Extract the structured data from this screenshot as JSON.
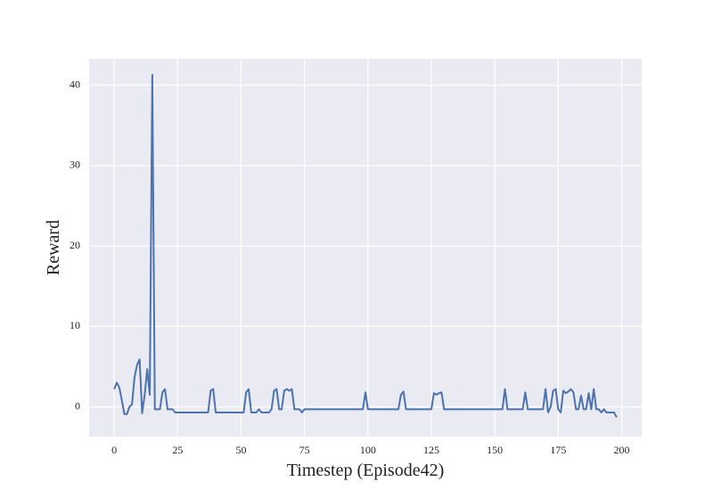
{
  "chart_data": {
    "type": "line",
    "x_label": "Timestep (Episode42)",
    "y_label": "Reward",
    "x": [
      0,
      1,
      2,
      3,
      4,
      5,
      6,
      7,
      8,
      9,
      10,
      11,
      12,
      13,
      14,
      15,
      16,
      17,
      18,
      19,
      20,
      21,
      22,
      23,
      24,
      25,
      26,
      27,
      28,
      29,
      30,
      31,
      32,
      33,
      34,
      35,
      36,
      37,
      38,
      39,
      40,
      41,
      42,
      43,
      44,
      45,
      46,
      47,
      48,
      49,
      50,
      51,
      52,
      53,
      54,
      55,
      56,
      57,
      58,
      59,
      60,
      61,
      62,
      63,
      64,
      65,
      66,
      67,
      68,
      69,
      70,
      71,
      72,
      73,
      74,
      75,
      76,
      77,
      78,
      79,
      80,
      81,
      82,
      83,
      84,
      85,
      86,
      87,
      88,
      89,
      90,
      91,
      92,
      93,
      94,
      95,
      96,
      97,
      98,
      99,
      100,
      101,
      102,
      103,
      104,
      105,
      106,
      107,
      108,
      109,
      110,
      111,
      112,
      113,
      114,
      115,
      116,
      117,
      118,
      119,
      120,
      121,
      122,
      123,
      124,
      125,
      126,
      127,
      128,
      129,
      130,
      131,
      132,
      133,
      134,
      135,
      136,
      137,
      138,
      139,
      140,
      141,
      142,
      143,
      144,
      145,
      146,
      147,
      148,
      149,
      150,
      151,
      152,
      153,
      154,
      155,
      156,
      157,
      158,
      159,
      160,
      161,
      162,
      163,
      164,
      165,
      166,
      167,
      168,
      169,
      170,
      171,
      172,
      173,
      174,
      175,
      176,
      177,
      178,
      179,
      180,
      181,
      182,
      183,
      184,
      185,
      186,
      187,
      188,
      189,
      190,
      191,
      192,
      193,
      194,
      195,
      196,
      197,
      198
    ],
    "series": [
      {
        "color": "#4c72b0",
        "values": [
          2.2,
          3.0,
          2.4,
          0.8,
          -0.9,
          -0.9,
          0,
          0.3,
          3.7,
          5.2,
          5.9,
          -0.8,
          1.5,
          4.7,
          1.5,
          41.3,
          -0.3,
          -0.3,
          -0.3,
          1.8,
          2.2,
          -0.3,
          -0.3,
          -0.3,
          -0.7,
          -0.7,
          -0.7,
          -0.7,
          -0.7,
          -0.7,
          -0.7,
          -0.7,
          -0.7,
          -0.7,
          -0.7,
          -0.7,
          -0.7,
          -0.7,
          2.0,
          2.2,
          -0.7,
          -0.7,
          -0.7,
          -0.7,
          -0.7,
          -0.7,
          -0.7,
          -0.7,
          -0.7,
          -0.7,
          -0.7,
          -0.7,
          1.8,
          2.2,
          -0.7,
          -0.7,
          -0.7,
          -0.3,
          -0.7,
          -0.7,
          -0.7,
          -0.7,
          -0.3,
          2.0,
          2.2,
          -0.3,
          -0.3,
          2.0,
          2.2,
          2.0,
          2.2,
          -0.3,
          -0.3,
          -0.3,
          -0.7,
          -0.3,
          -0.3,
          -0.3,
          -0.3,
          -0.3,
          -0.3,
          -0.3,
          -0.3,
          -0.3,
          -0.3,
          -0.3,
          -0.3,
          -0.3,
          -0.3,
          -0.3,
          -0.3,
          -0.3,
          -0.3,
          -0.3,
          -0.3,
          -0.3,
          -0.3,
          -0.3,
          -0.3,
          1.8,
          -0.3,
          -0.3,
          -0.3,
          -0.3,
          -0.3,
          -0.3,
          -0.3,
          -0.3,
          -0.3,
          -0.3,
          -0.3,
          -0.3,
          -0.3,
          1.5,
          1.9,
          -0.3,
          -0.3,
          -0.3,
          -0.3,
          -0.3,
          -0.3,
          -0.3,
          -0.3,
          -0.3,
          -0.3,
          -0.3,
          1.7,
          1.5,
          1.7,
          1.8,
          -0.3,
          -0.3,
          -0.3,
          -0.3,
          -0.3,
          -0.3,
          -0.3,
          -0.3,
          -0.3,
          -0.3,
          -0.3,
          -0.3,
          -0.3,
          -0.3,
          -0.3,
          -0.3,
          -0.3,
          -0.3,
          -0.3,
          -0.3,
          -0.3,
          -0.3,
          -0.3,
          -0.3,
          2.2,
          -0.3,
          -0.3,
          -0.3,
          -0.3,
          -0.3,
          -0.3,
          -0.3,
          1.8,
          -0.3,
          -0.3,
          -0.3,
          -0.3,
          -0.3,
          -0.3,
          -0.3,
          2.2,
          -0.7,
          0,
          2.0,
          2.2,
          -0.3,
          -0.7,
          2.0,
          1.7,
          1.9,
          2.2,
          1.8,
          -0.3,
          -0.3,
          1.4,
          -0.3,
          -0.3,
          1.7,
          -0.3,
          2.2,
          -0.3,
          -0.3,
          -0.7,
          -0.3,
          -0.7,
          -0.7,
          -0.7,
          -0.7,
          -1.3
        ]
      }
    ],
    "xlim": [
      -9.9,
      207.9
    ],
    "ylim": [
      -3.7,
      43.3
    ],
    "xticks": [
      0,
      25,
      50,
      75,
      100,
      125,
      150,
      175,
      200
    ],
    "yticks": [
      0,
      10,
      20,
      30,
      40
    ],
    "grid": true
  }
}
